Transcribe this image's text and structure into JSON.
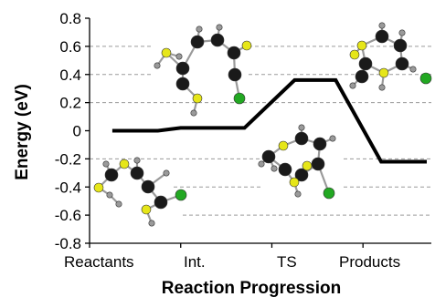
{
  "chart_data": {
    "type": "line",
    "title": "",
    "xlabel": "Reaction Progression",
    "ylabel": "Energy (eV)",
    "ylim": [
      -0.8,
      0.8
    ],
    "yticks": [
      -0.8,
      -0.6,
      -0.4,
      -0.2,
      0,
      0.2,
      0.4,
      0.6,
      0.8
    ],
    "ytick_labels": [
      "-0.8",
      "-0.6",
      "-0.4",
      "-0.2",
      "0",
      "0.2",
      "0.4",
      "0.6",
      "0.8"
    ],
    "categories": [
      "Reactants",
      "Int.",
      "TS",
      "Products"
    ],
    "grid": "horizontal dashed",
    "series": [
      {
        "x": [
          0.25,
          0.75,
          1.0,
          1.7,
          2.25,
          2.7,
          3.2,
          3.7
        ],
        "y": [
          0.0,
          0.0,
          0.02,
          0.02,
          0.36,
          0.36,
          -0.22,
          -0.22
        ],
        "color": "#000000"
      }
    ],
    "colors": {
      "sulfur": "#e6e619",
      "carbon": "#1a1a1a",
      "hydrogen": "#9a9a9a",
      "chlorine": "#22a822"
    }
  }
}
